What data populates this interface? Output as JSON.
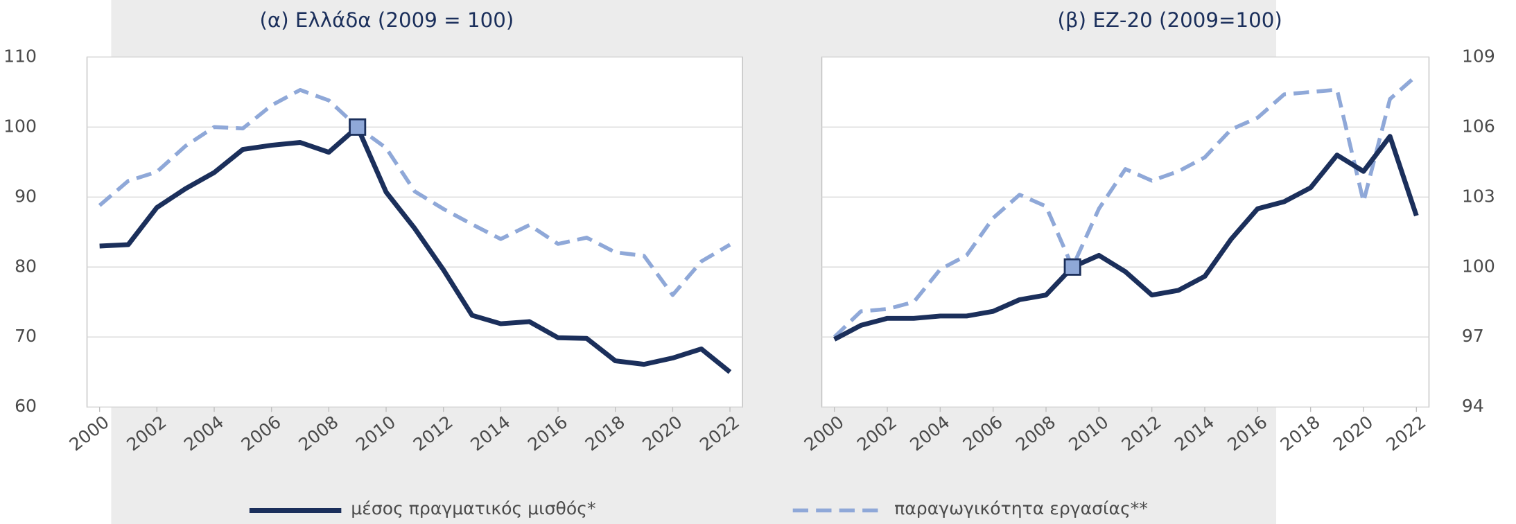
{
  "chart_data": [
    {
      "type": "line",
      "title": "(α) Ελλάδα (2009 = 100)",
      "x": [
        2000,
        2001,
        2002,
        2003,
        2004,
        2005,
        2006,
        2007,
        2008,
        2009,
        2010,
        2011,
        2012,
        2013,
        2014,
        2015,
        2016,
        2017,
        2018,
        2019,
        2020,
        2021,
        2022
      ],
      "xlim": [
        2000,
        2022
      ],
      "xticks": [
        2000,
        2002,
        2004,
        2006,
        2008,
        2010,
        2012,
        2014,
        2016,
        2018,
        2020,
        2022
      ],
      "ylim": [
        60,
        110
      ],
      "yticks": [
        60,
        70,
        80,
        90,
        100,
        110
      ],
      "grid": true,
      "highlight": 2009,
      "series": [
        {
          "name": "μέσος πραγματικός μισθός*",
          "color": "#1b2f5b",
          "dash": false,
          "values": [
            83,
            83.2,
            88.5,
            91.2,
            93.5,
            96.8,
            97.4,
            97.8,
            96.4,
            100,
            90.7,
            85.5,
            79.6,
            73.1,
            71.9,
            72.2,
            69.9,
            69.8,
            66.6,
            66.1,
            67,
            68.3,
            65
          ]
        },
        {
          "name": "παραγωγικότητα εργασίας**",
          "color": "#8fa8d8",
          "dash": true,
          "values": [
            88.8,
            92.3,
            93.6,
            97.3,
            100,
            99.8,
            103.1,
            105.3,
            103.8,
            100,
            97,
            90.8,
            88.3,
            86.1,
            84,
            86,
            83.3,
            84.2,
            82.1,
            81.6,
            76,
            80.8,
            83.2
          ]
        }
      ]
    },
    {
      "type": "line",
      "title": "(β) ΕΖ-20 (2009=100)",
      "x": [
        2000,
        2001,
        2002,
        2003,
        2004,
        2005,
        2006,
        2007,
        2008,
        2009,
        2010,
        2011,
        2012,
        2013,
        2014,
        2015,
        2016,
        2017,
        2018,
        2019,
        2020,
        2021,
        2022
      ],
      "xlim": [
        2000,
        2022
      ],
      "xticks": [
        2000,
        2002,
        2004,
        2006,
        2008,
        2010,
        2012,
        2014,
        2016,
        2018,
        2020,
        2022
      ],
      "y2lim": [
        94,
        109
      ],
      "y2ticks": [
        94,
        97,
        100,
        103,
        106,
        109
      ],
      "grid": true,
      "highlight": 2009,
      "series": [
        {
          "color": "#1b2f5b",
          "dash": false,
          "axis": "y2",
          "values": [
            96.9,
            97.5,
            97.8,
            97.8,
            97.9,
            97.9,
            98.1,
            98.6,
            98.8,
            100,
            100.5,
            99.8,
            98.8,
            99,
            99.6,
            101.2,
            102.5,
            102.8,
            103.4,
            104.8,
            104.1,
            105.6,
            102.2
          ]
        },
        {
          "color": "#8fa8d8",
          "dash": true,
          "axis": "y2",
          "values": [
            97,
            98.1,
            98.2,
            98.5,
            99.9,
            100.5,
            102.1,
            103.1,
            102.6,
            100,
            102.5,
            104.2,
            103.7,
            104.1,
            104.7,
            105.9,
            106.4,
            107.4,
            107.5,
            107.6,
            102.8,
            107.2,
            108.2
          ]
        }
      ]
    }
  ]
}
